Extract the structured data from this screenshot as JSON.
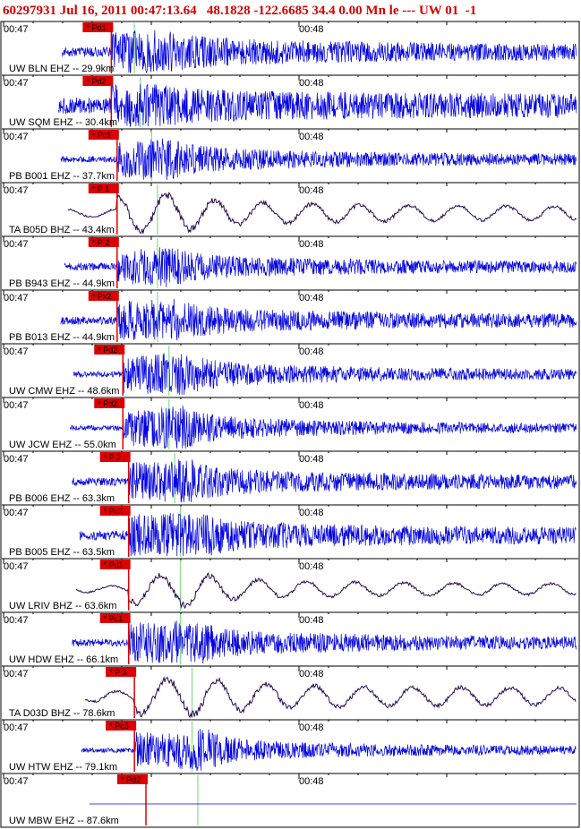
{
  "header": {
    "title": "60297931 Jul 16, 2011 00:47:13.64   48.1828 -122.6685 34.4 0.00 Mn le --- UW 01  -1"
  },
  "colors": {
    "header_text": "#d40000",
    "waveform_short_period": "#0000e0",
    "waveform_broadband": "#2a0a50",
    "pick_marker": "#dd0000",
    "s_arrival_marker": "#88dd88",
    "panel_border": "#000000"
  },
  "chart_data": {
    "type": "line",
    "x_ticks": [
      "00:47",
      "00:48"
    ],
    "panels": [
      {
        "station": "UW BLN EHZ -- 29.9km",
        "pick": "Pd1",
        "band": "EHZ",
        "t0": "00:47",
        "t1": "00:48",
        "p_frac": 0.19,
        "s_frac": 0.23,
        "level": 0.45,
        "burst": 1.0
      },
      {
        "station": "UW SQM EHZ -- 30.4km",
        "pick": "Pd2",
        "band": "EHZ",
        "t0": "00:47",
        "t1": "00:48",
        "p_frac": 0.19,
        "s_frac": 0.24,
        "level": 0.85,
        "burst": 0.6
      },
      {
        "station": "PB B001 EHZ -- 37.7km",
        "pick": "Pc1",
        "band": "EHZ",
        "t0": "00:47",
        "t1": "00:48",
        "p_frac": 0.2,
        "s_frac": 0.26,
        "level": 0.25,
        "burst": 0.9
      },
      {
        "station": "TA B05D BHZ -- 43.4km",
        "pick": "P 1",
        "band": "BHZ",
        "t0": "00:47",
        "t1": "00:48",
        "p_frac": 0.2,
        "s_frac": 0.27,
        "level": 0.45,
        "burst": 1.0
      },
      {
        "station": "PB B943 EHZ -- 44.9km",
        "pick": "P 2",
        "band": "EHZ",
        "t0": "00:47",
        "t1": "00:48",
        "p_frac": 0.2,
        "s_frac": 0.27,
        "level": 0.3,
        "burst": 0.8
      },
      {
        "station": "PB B013 EHZ -- 44.9km",
        "pick": "Px2",
        "band": "EHZ",
        "t0": "00:47",
        "t1": "00:48",
        "p_frac": 0.2,
        "s_frac": 0.27,
        "level": 0.35,
        "burst": 0.9
      },
      {
        "station": "UW CMW EHZ -- 48.6km",
        "pick": "Pd2",
        "band": "EHZ",
        "t0": "00:47",
        "t1": "00:48",
        "p_frac": 0.21,
        "s_frac": 0.29,
        "level": 0.2,
        "burst": 1.0
      },
      {
        "station": "UW JCW EHZ -- 55.0km",
        "pick": "Pd2",
        "band": "EHZ",
        "t0": "00:47",
        "t1": "00:48",
        "p_frac": 0.21,
        "s_frac": 0.29,
        "level": 0.15,
        "burst": 1.0
      },
      {
        "station": "PB B006 EHZ -- 63.3km",
        "pick": "P 2",
        "band": "EHZ",
        "t0": "00:47",
        "t1": "00:48",
        "p_frac": 0.22,
        "s_frac": 0.3,
        "level": 0.35,
        "burst": 0.9
      },
      {
        "station": "PB B005 EHZ -- 63.5km",
        "pick": "Pc2",
        "band": "EHZ",
        "t0": "00:47",
        "t1": "00:48",
        "p_frac": 0.22,
        "s_frac": 0.31,
        "level": 0.45,
        "burst": 1.0
      },
      {
        "station": "UW LRIV BHZ -- 63.6km",
        "pick": "Pd1",
        "band": "BHZ",
        "t0": "00:47",
        "t1": "00:48",
        "p_frac": 0.22,
        "s_frac": 0.31,
        "level": 0.35,
        "burst": 0.8
      },
      {
        "station": "UW HDW EHZ -- 66.1km",
        "pick": "Pc1",
        "band": "EHZ",
        "t0": "00:47",
        "t1": "00:48",
        "p_frac": 0.22,
        "s_frac": 0.31,
        "level": 0.3,
        "burst": 1.0
      },
      {
        "station": "TA D03D BHZ -- 78.6km",
        "pick": "P 3",
        "band": "BHZ",
        "t0": "00:47",
        "t1": "00:48",
        "p_frac": 0.23,
        "s_frac": 0.33,
        "level": 0.65,
        "burst": 0.8
      },
      {
        "station": "UW HTW EHZ -- 79.1km",
        "pick": "Pc3",
        "band": "EHZ",
        "t0": "00:47",
        "t1": "00:48",
        "p_frac": 0.23,
        "s_frac": 0.33,
        "level": 0.12,
        "burst": 1.0
      },
      {
        "station": "UW MBW EHZ -- 87.6km",
        "pick": "Pd2",
        "band": "EHZ",
        "t0": "00:47",
        "t1": "00:48",
        "p_frac": 0.25,
        "s_frac": 0.34,
        "level": 0.0,
        "burst": 0.0
      }
    ]
  }
}
